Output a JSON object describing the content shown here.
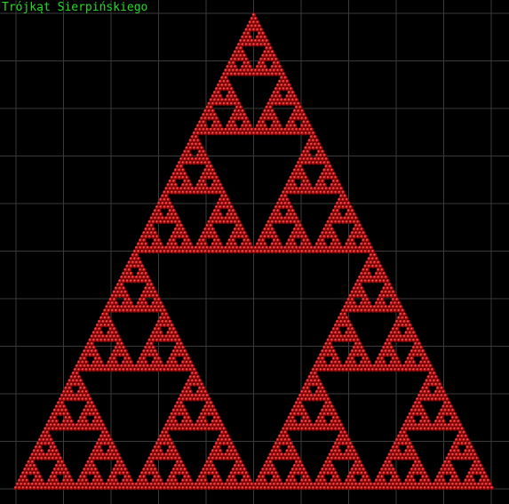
{
  "window": {
    "title": "Trójkąt Sierpińskiego"
  },
  "colors": {
    "background": "#000000",
    "grid": "#3a3a3a",
    "title": "#22dd22",
    "dot_dark": "#6a0000",
    "dot_mid": "#c01010",
    "dot_light": "#ff8080"
  },
  "fractal": {
    "type": "sierpinski-triangle",
    "depth": 6
  }
}
